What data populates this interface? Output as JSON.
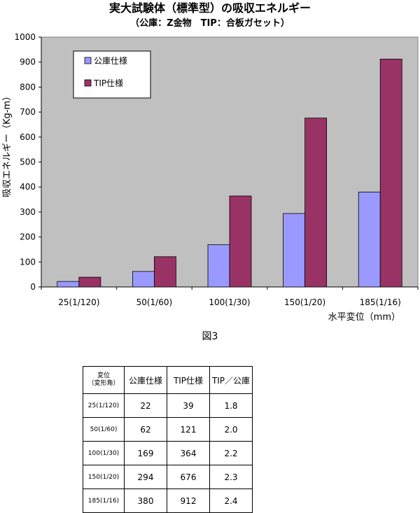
{
  "chart_data": {
    "type": "bar",
    "title": "実大試験体（標準型）の吸収エネルギー",
    "subtitle": "（公庫：Z金物　TIP：合板ガセット）",
    "xlabel": "水平変位（mm）",
    "ylabel": "吸収エネルギー（Kg-m）",
    "ylim": [
      0,
      1000
    ],
    "yticks": [
      0,
      100,
      200,
      300,
      400,
      500,
      600,
      700,
      800,
      900,
      1000
    ],
    "grid": false,
    "legend_position": "top-left",
    "categories": [
      "25(1/120)",
      "50(1/60)",
      "100(1/30)",
      "150(1/20)",
      "185(1/16)"
    ],
    "series": [
      {
        "name": "公庫仕様",
        "color": "#9999ff",
        "values": [
          22,
          62,
          169,
          294,
          380
        ]
      },
      {
        "name": "TIP仕様",
        "color": "#993366",
        "values": [
          39,
          121,
          364,
          676,
          912
        ]
      }
    ],
    "plot_background": "#c0c0c0"
  },
  "figure_caption": "図3",
  "table": {
    "header": {
      "col1_line1": "変位",
      "col1_line2": "（変形角）",
      "col2": "公庫仕様",
      "col3": "TIP仕様",
      "col4": "TIP／公庫"
    },
    "rows": [
      {
        "label": "25(1/120)",
        "koko": "22",
        "tip": "39",
        "ratio": "1.8"
      },
      {
        "label": "50(1/60)",
        "koko": "62",
        "tip": "121",
        "ratio": "2.0"
      },
      {
        "label": "100(1/30)",
        "koko": "169",
        "tip": "364",
        "ratio": "2.2"
      },
      {
        "label": "150(1/20)",
        "koko": "294",
        "tip": "676",
        "ratio": "2.3"
      },
      {
        "label": "185(1/16)",
        "koko": "380",
        "tip": "912",
        "ratio": "2.4"
      }
    ]
  }
}
